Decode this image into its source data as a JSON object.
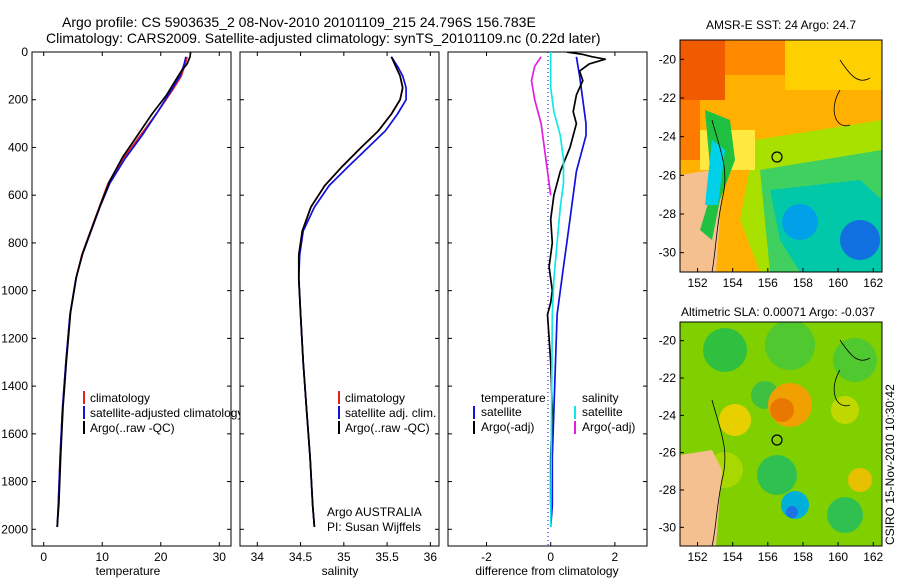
{
  "header": {
    "line1": "Argo profile: CS 5903635_2 08-Nov-2010 20101109_215 24.796S 156.783E",
    "line2": "Climatology: CARS2009. Satellite-adjusted climatology: synTS_20101109.nc (0.22d later)"
  },
  "side_label": "CSIRO 15-Nov-2010 10:30:42",
  "colors": {
    "red": "#e8201c",
    "blue": "#1010e0",
    "black": "#000000",
    "cyan": "#10e8e8",
    "magenta": "#e020e0"
  },
  "chart_data": [
    {
      "type": "line",
      "title": "",
      "xlabel": "temperature",
      "ylabel": "",
      "xlim": [
        -2,
        32
      ],
      "ylim": [
        2070,
        0
      ],
      "xticks": [
        0,
        10,
        20,
        30
      ],
      "yticks": [
        0,
        200,
        400,
        600,
        800,
        1000,
        1200,
        1400,
        1600,
        1800,
        2000
      ],
      "legend": {
        "position": "bottom-right",
        "entries": [
          "climatology",
          "satellite-adjusted climatology",
          "Argo(..raw -QC)"
        ]
      },
      "series": [
        {
          "name": "climatology",
          "color": "red",
          "x": [
            24.5,
            24.2,
            23.5,
            22.0,
            19.5,
            16.5,
            13.5,
            11.0,
            9.5,
            8.0,
            6.5,
            5.5,
            4.5,
            3.8,
            3.2,
            2.8,
            2.5,
            2.3
          ],
          "y": [
            20,
            50,
            100,
            160,
            250,
            350,
            450,
            550,
            650,
            750,
            850,
            950,
            1100,
            1300,
            1500,
            1700,
            1900,
            1990
          ]
        },
        {
          "name": "satellite-adjusted climatology",
          "color": "blue",
          "x": [
            24.3,
            24.0,
            23.3,
            21.8,
            19.5,
            16.8,
            13.8,
            11.3,
            9.6,
            8.1,
            6.6,
            5.5,
            4.5,
            3.8,
            3.2,
            2.8,
            2.5,
            2.3
          ],
          "y": [
            20,
            50,
            100,
            160,
            250,
            350,
            450,
            550,
            650,
            750,
            850,
            950,
            1100,
            1300,
            1500,
            1700,
            1900,
            1990
          ]
        },
        {
          "name": "Argo(..raw -QC)",
          "color": "black",
          "x": [
            25.1,
            25.0,
            24.5,
            23.5,
            22.5,
            21.0,
            18.5,
            16.0,
            13.5,
            11.3,
            9.7,
            8.2,
            6.7,
            5.6,
            4.6,
            3.9,
            3.3,
            2.9,
            2.6,
            2.3
          ],
          "y": [
            0,
            20,
            50,
            80,
            120,
            180,
            260,
            350,
            440,
            540,
            640,
            740,
            840,
            940,
            1090,
            1290,
            1490,
            1690,
            1890,
            1990
          ]
        }
      ]
    },
    {
      "type": "line",
      "title": "",
      "xlabel": "salinity",
      "ylabel": "",
      "xlim": [
        33.8,
        36.1
      ],
      "ylim": [
        2070,
        0
      ],
      "xticks": [
        34,
        34.5,
        35,
        35.5,
        36
      ],
      "xticklabels": [
        "34",
        "34.5",
        "35",
        "35.5",
        "36"
      ],
      "yticks": [
        0,
        200,
        400,
        600,
        800,
        1000,
        1200,
        1400,
        1600,
        1800,
        2000
      ],
      "legend": {
        "position": "bottom-right",
        "entries": [
          "climatology",
          "satellite adj. clim.",
          "Argo(..raw -QC)"
        ]
      },
      "annotation": {
        "line1": "Argo AUSTRALIA",
        "line2": "PI: Susan Wijffels"
      },
      "series": [
        {
          "name": "climatology",
          "color": "red",
          "x": [
            35.55,
            35.6,
            35.65,
            35.68,
            35.65,
            35.55,
            35.4,
            35.2,
            34.98,
            34.78,
            34.62,
            34.52,
            34.48,
            34.48,
            34.5,
            34.53,
            34.57,
            34.61,
            34.64,
            34.66
          ],
          "y": [
            20,
            60,
            100,
            150,
            200,
            260,
            330,
            400,
            480,
            560,
            650,
            750,
            850,
            950,
            1100,
            1300,
            1500,
            1700,
            1900,
            1990
          ]
        },
        {
          "name": "satellite adj. clim.",
          "color": "blue",
          "x": [
            35.55,
            35.62,
            35.68,
            35.72,
            35.72,
            35.62,
            35.48,
            35.28,
            35.05,
            34.83,
            34.66,
            34.53,
            34.49,
            34.48,
            34.5,
            34.53,
            34.57,
            34.61,
            34.64,
            34.66
          ],
          "y": [
            20,
            60,
            100,
            150,
            200,
            260,
            330,
            400,
            480,
            560,
            650,
            750,
            850,
            950,
            1100,
            1300,
            1500,
            1700,
            1900,
            1990
          ]
        },
        {
          "name": "Argo(..raw -QC)",
          "color": "black",
          "x": [
            35.55,
            35.6,
            35.65,
            35.68,
            35.65,
            35.55,
            35.4,
            35.2,
            34.98,
            34.78,
            34.62,
            34.52,
            34.48,
            34.48,
            34.5,
            34.53,
            34.57,
            34.61,
            34.64,
            34.66
          ],
          "y": [
            20,
            60,
            100,
            150,
            200,
            260,
            330,
            400,
            480,
            560,
            650,
            750,
            850,
            950,
            1100,
            1300,
            1500,
            1700,
            1900,
            1990
          ]
        }
      ]
    },
    {
      "type": "line",
      "title": "",
      "xlabel": "difference from climatology",
      "ylabel": "",
      "xlim": [
        -3.2,
        3.0
      ],
      "ylim": [
        2070,
        0
      ],
      "xticks": [
        -2,
        0,
        2
      ],
      "yticks": [
        0,
        200,
        400,
        600,
        800,
        1000,
        1200,
        1400,
        1600,
        1800,
        2000
      ],
      "legend": {
        "position": "bottom",
        "headers": [
          "temperature",
          "salinity"
        ],
        "entries": [
          "satellite",
          "Argo(-adj)",
          "satellite",
          "Argo(-adj)"
        ]
      },
      "series": [
        {
          "name": "temperature satellite",
          "color": "blue",
          "x": [
            0.8,
            0.9,
            1.0,
            1.1,
            1.1,
            1.0,
            0.8,
            0.7,
            0.6,
            0.5,
            0.4,
            0.3,
            0.2,
            0.15,
            0.1,
            0.05,
            0.05,
            0.0
          ],
          "y": [
            20,
            100,
            200,
            300,
            350,
            400,
            500,
            600,
            700,
            800,
            900,
            1000,
            1100,
            1300,
            1500,
            1700,
            1900,
            1990
          ]
        },
        {
          "name": "temperature Argo(-adj)",
          "color": "black",
          "x": [
            0.5,
            1.0,
            1.3,
            1.7,
            1.2,
            0.9,
            1.0,
            0.8,
            0.7,
            0.8,
            0.6,
            0.3,
            0.1,
            0.0,
            0.05,
            -0.05,
            0.05,
            0.0,
            -0.1,
            0.0,
            0.05,
            0.0,
            0.0
          ],
          "y": [
            0,
            10,
            20,
            30,
            50,
            80,
            120,
            180,
            250,
            300,
            400,
            500,
            600,
            700,
            800,
            900,
            1000,
            1050,
            1100,
            1300,
            1500,
            1700,
            1900
          ]
        },
        {
          "name": "salinity satellite",
          "color": "cyan",
          "x": [
            0.0,
            0.0,
            0.1,
            0.3,
            0.4,
            0.4,
            0.3,
            0.2,
            0.1,
            0.05,
            0.0
          ],
          "y": [
            0,
            150,
            250,
            350,
            450,
            550,
            650,
            800,
            950,
            1100,
            1990
          ]
        },
        {
          "name": "salinity Argo(-adj)",
          "color": "magenta",
          "x": [
            -0.3,
            -0.5,
            -0.6,
            -0.5,
            -0.3,
            -0.2,
            -0.1,
            0.0
          ],
          "y": [
            20,
            60,
            120,
            200,
            300,
            400,
            500,
            600
          ]
        }
      ]
    },
    {
      "type": "heatmap",
      "title": "AMSR-E SST: 24  Argo: 24.7",
      "xlabel": "",
      "ylabel": "",
      "xlim": [
        151,
        162.5
      ],
      "ylim": [
        -31,
        -19
      ],
      "xticks": [
        152,
        154,
        156,
        158,
        160,
        162
      ],
      "yticks": [
        -20,
        -22,
        -24,
        -26,
        -28,
        -30
      ],
      "float_position": [
        156.783,
        -24.796
      ]
    },
    {
      "type": "heatmap",
      "title": "Altimetric SLA: 0.00071  Argo: -0.037",
      "xlabel": "",
      "ylabel": "",
      "xlim": [
        151,
        162.5
      ],
      "ylim": [
        -31,
        -19
      ],
      "xticks": [
        152,
        154,
        156,
        158,
        160,
        162
      ],
      "yticks": [
        -20,
        -22,
        -24,
        -26,
        -28,
        -30
      ],
      "float_position": [
        156.783,
        -24.796
      ]
    }
  ]
}
